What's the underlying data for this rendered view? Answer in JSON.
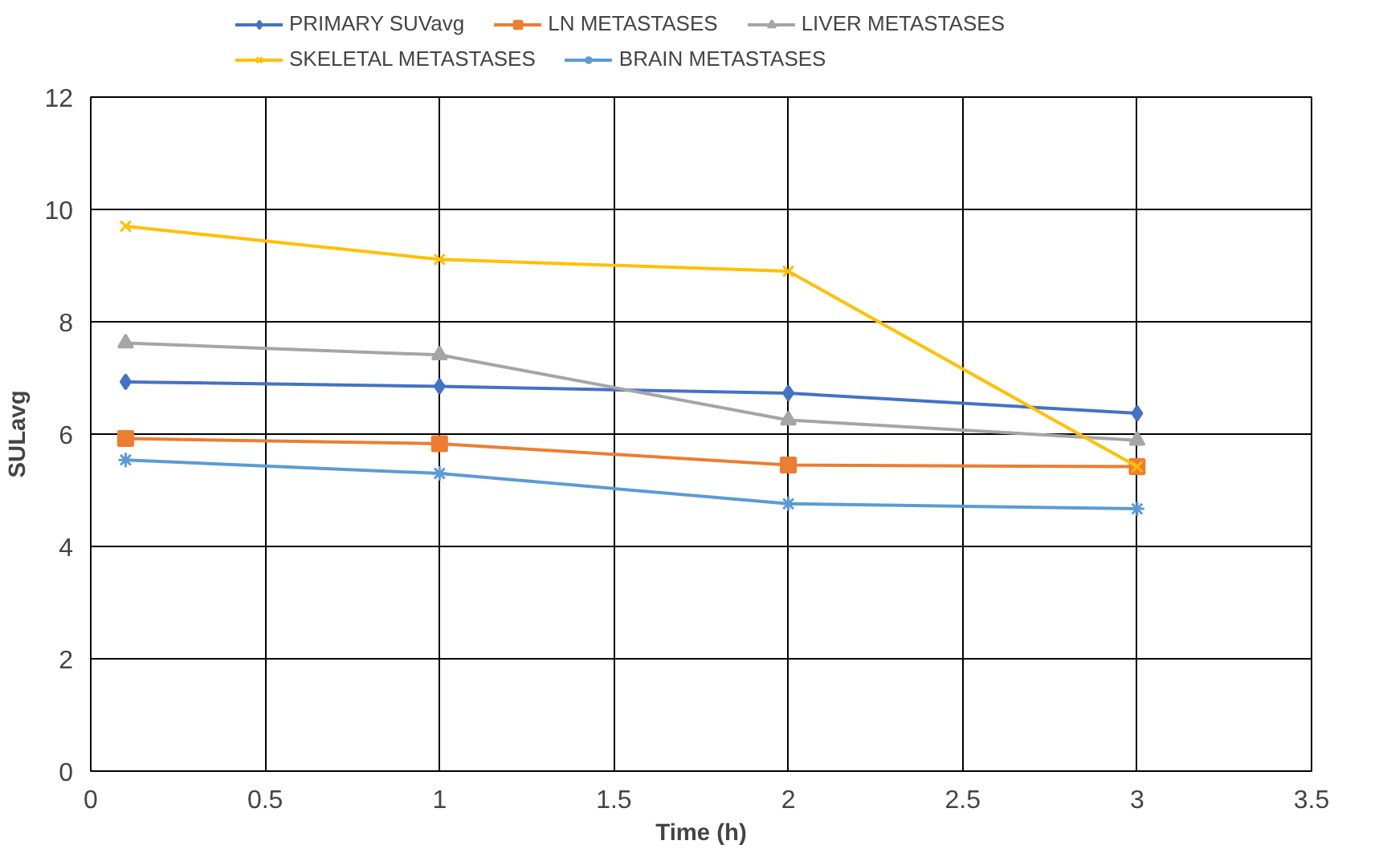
{
  "chart_data": {
    "type": "line",
    "xlabel": "Time (h)",
    "ylabel": "SULavg",
    "x": [
      0.1,
      1,
      2,
      3
    ],
    "xlim": [
      0,
      3.5
    ],
    "xticks": [
      0,
      0.5,
      1,
      1.5,
      2,
      2.5,
      3,
      3.5
    ],
    "ylim": [
      0,
      12
    ],
    "yticks": [
      0,
      2,
      4,
      6,
      8,
      10,
      12
    ],
    "grid": true,
    "legend": "top",
    "series": [
      {
        "name": "PRIMARY SUVavg",
        "color": "#4472c4",
        "marker": "diamond",
        "values": [
          6.93,
          6.85,
          6.73,
          6.37
        ]
      },
      {
        "name": "LN METASTASES",
        "color": "#ed7d31",
        "marker": "square",
        "values": [
          5.92,
          5.83,
          5.45,
          5.42
        ]
      },
      {
        "name": "LIVER METASTASES",
        "color": "#a5a5a5",
        "marker": "triangle",
        "values": [
          7.62,
          7.41,
          6.25,
          5.89
        ]
      },
      {
        "name": "SKELETAL METASTASES",
        "color": "#ffc000",
        "marker": "x",
        "values": [
          9.7,
          9.11,
          8.9,
          5.42
        ]
      },
      {
        "name": "BRAIN METASTASES",
        "color": "#5b9bd5",
        "marker": "cross",
        "values": [
          5.54,
          5.3,
          4.76,
          4.67
        ]
      }
    ]
  }
}
